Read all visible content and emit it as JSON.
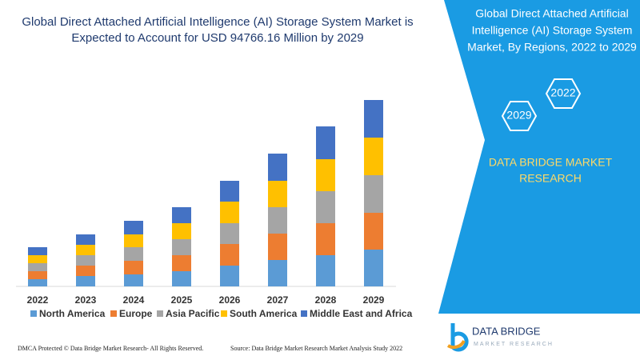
{
  "chart_data": {
    "type": "stacked-bar",
    "title": [
      "Global Direct Attached Artificial Intelligence (AI) Storage System Market is",
      "Expected to Account for USD 94766.16 Million by 2029"
    ],
    "categories": [
      "2022",
      "2023",
      "2024",
      "2025",
      "2026",
      "2027",
      "2028",
      "2029"
    ],
    "series": [
      {
        "name": "North America",
        "color": "#5b9bd5",
        "values": [
          9,
          13,
          15,
          19,
          26,
          33,
          39,
          46
        ]
      },
      {
        "name": "Europe",
        "color": "#ed7d31",
        "values": [
          10,
          13,
          17,
          20,
          27,
          33,
          40,
          46
        ]
      },
      {
        "name": "Asia Pacific",
        "color": "#a5a5a5",
        "values": [
          10,
          13,
          17,
          20,
          26,
          33,
          40,
          47
        ]
      },
      {
        "name": "South America",
        "color": "#ffc000",
        "values": [
          10,
          13,
          16,
          20,
          27,
          33,
          40,
          47
        ]
      },
      {
        "name": "Middle East and Africa",
        "color": "#4472c4",
        "values": [
          10,
          13,
          17,
          20,
          26,
          34,
          41,
          47
        ]
      }
    ],
    "ylim": [
      0,
      240
    ]
  },
  "panel": {
    "title": [
      "Global Direct Attached Artificial",
      "Intelligence (AI) Storage System",
      "Market, By Regions, 2022 to 2029"
    ],
    "hexagons": [
      "2022",
      "2029"
    ],
    "brand": [
      "DATA BRIDGE MARKET",
      "RESEARCH"
    ]
  },
  "logo": {
    "name": "DATA BRIDGE",
    "tagline": "MARKET RESEARCH"
  },
  "footer": {
    "left": "DMCA Protected © Data Bridge Market Research- All Rights Reserved.",
    "right": "Source: Data Bridge Market Research Market Analysis Study 2022"
  }
}
